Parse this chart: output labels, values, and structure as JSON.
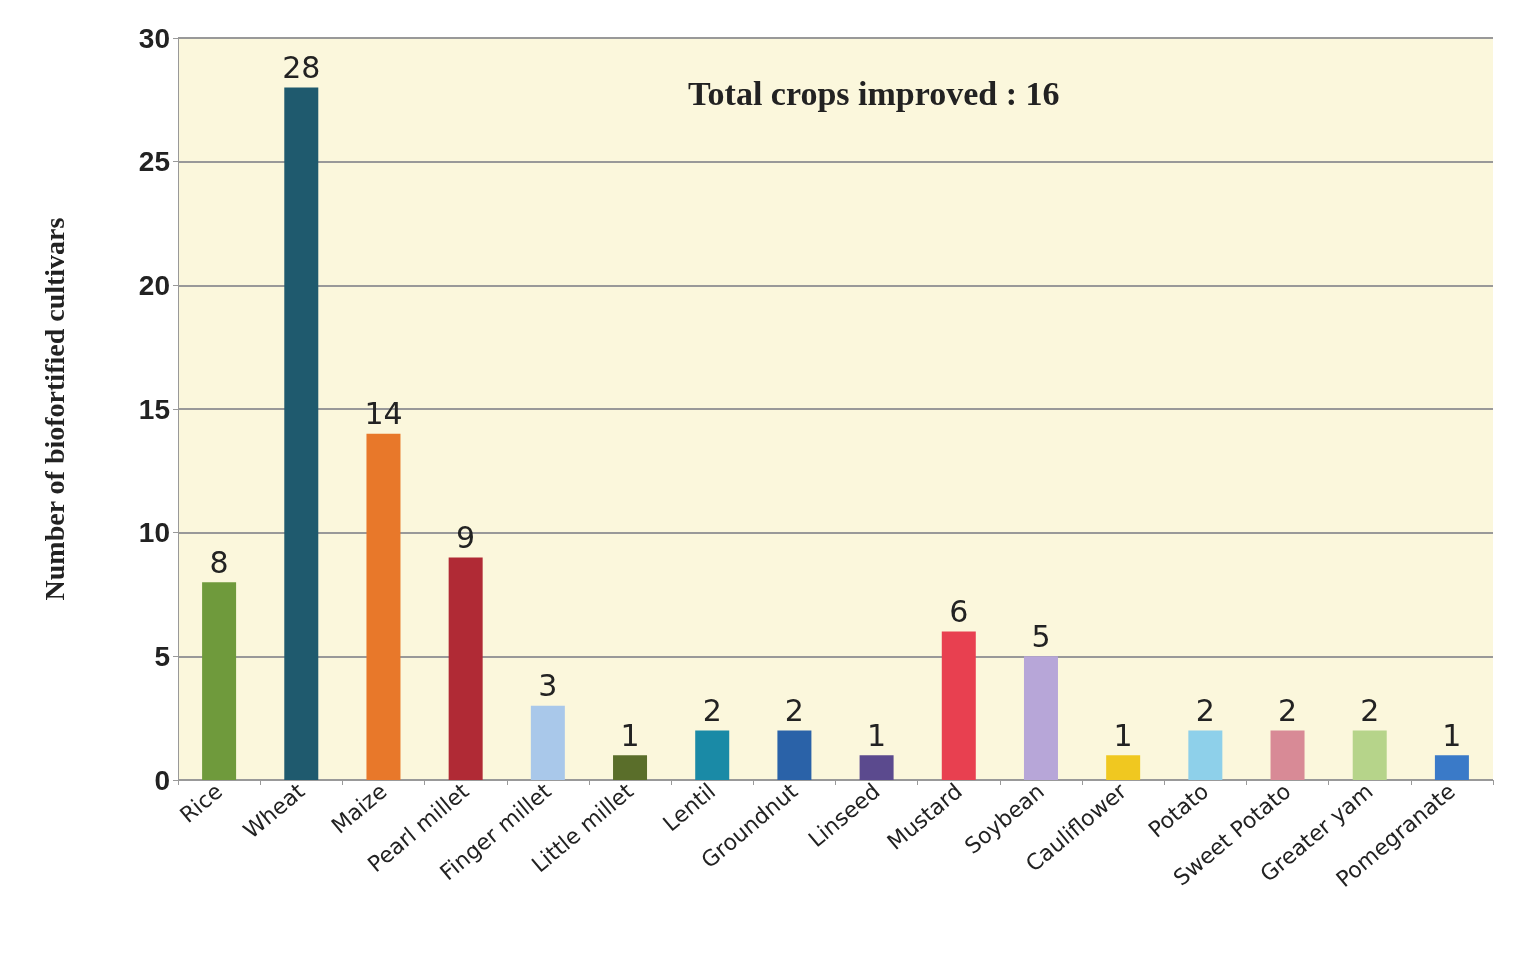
{
  "chart_data": {
    "type": "bar",
    "ylabel": "Number of biofortified cultivars",
    "annotations": [
      "Total crops improved : 16"
    ],
    "categories": [
      "Rice",
      "Wheat",
      "Maize",
      "Pearl millet",
      "Finger millet",
      "Little millet",
      "Lentil",
      "Groundnut",
      "Linseed",
      "Mustard",
      "Soybean",
      "Cauliflower",
      "Potato",
      "Sweet Potato",
      "Greater yam",
      "Pomegranate"
    ],
    "values": [
      8,
      28,
      14,
      9,
      3,
      1,
      2,
      2,
      1,
      6,
      5,
      1,
      2,
      2,
      2,
      1
    ],
    "colors": [
      "#6f9a3c",
      "#1f5a6e",
      "#e8782a",
      "#b02a35",
      "#a9c8ea",
      "#5a6e2a",
      "#1a8aa6",
      "#2a62a8",
      "#5b4a8e",
      "#e84050",
      "#b7a6d8",
      "#f0c820",
      "#8ed0ea",
      "#d88a96",
      "#b6d48a",
      "#3a7ac8"
    ],
    "ylim": [
      0,
      30
    ],
    "yticks": [
      0,
      5,
      10,
      15,
      20,
      25,
      30
    ],
    "grid": "y",
    "data_labels": true
  }
}
